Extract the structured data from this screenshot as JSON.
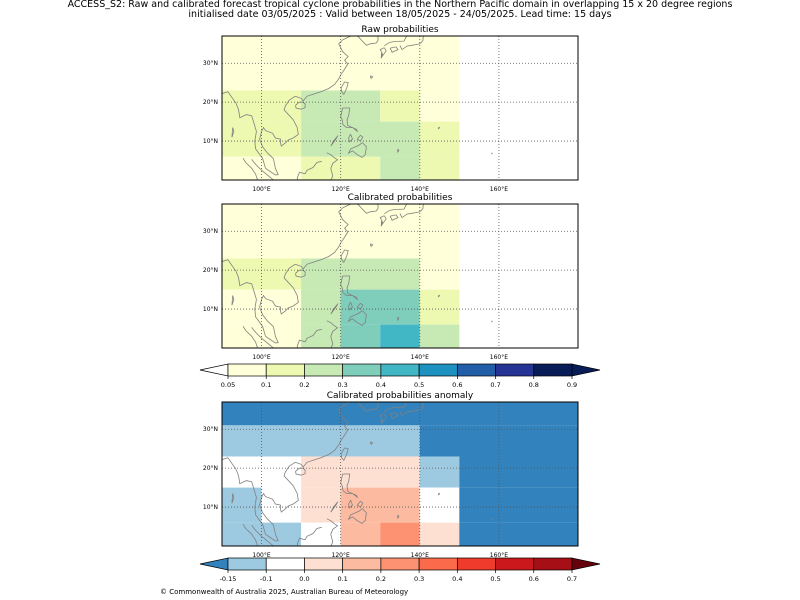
{
  "header": {
    "title_line1": "ACCESS_S2: Raw and calibrated forecast tropical cyclone probabilities in the Northern Pacific domain in overlapping 15 x 20 degree regions",
    "title_line2": "initialised date 03/05/2025 :  Valid between 18/05/2025 - 24/05/2025. Lead time: 15 days"
  },
  "footer": {
    "copyright": "© Commonwealth of Australia 2025, Australian Bureau of Meteorology"
  },
  "map": {
    "lon_range": [
      90,
      180
    ],
    "lat_range": [
      0,
      37
    ],
    "lon_ticks": [
      100,
      120,
      140,
      160
    ],
    "lon_tick_labels": [
      "100°E",
      "120°E",
      "140°E",
      "160°E"
    ],
    "lat_ticks": [
      10,
      20,
      30
    ],
    "lat_tick_labels": [
      "10°N",
      "20°N",
      "30°N"
    ],
    "grid": true,
    "coastline_color": "#808080"
  },
  "chart_data": [
    {
      "type": "heatmap",
      "title": "Raw probabilities",
      "colorbar": "probability",
      "cells": [
        {
          "lon": [
            90,
            150
          ],
          "lat": [
            23,
            37
          ],
          "value": 0.05
        },
        {
          "lon": [
            90,
            100
          ],
          "lat": [
            15,
            23
          ],
          "value": 0.15
        },
        {
          "lon": [
            100,
            110
          ],
          "lat": [
            15,
            23
          ],
          "value": 0.15
        },
        {
          "lon": [
            110,
            130
          ],
          "lat": [
            15,
            23
          ],
          "value": 0.25
        },
        {
          "lon": [
            130,
            140
          ],
          "lat": [
            15,
            23
          ],
          "value": 0.15
        },
        {
          "lon": [
            140,
            150
          ],
          "lat": [
            15,
            23
          ],
          "value": 0.05
        },
        {
          "lon": [
            90,
            110
          ],
          "lat": [
            6,
            15
          ],
          "value": 0.15
        },
        {
          "lon": [
            110,
            140
          ],
          "lat": [
            6,
            15
          ],
          "value": 0.25
        },
        {
          "lon": [
            140,
            150
          ],
          "lat": [
            6,
            15
          ],
          "value": 0.15
        },
        {
          "lon": [
            90,
            110
          ],
          "lat": [
            0,
            6
          ],
          "value": 0.05
        },
        {
          "lon": [
            110,
            130
          ],
          "lat": [
            0,
            6
          ],
          "value": 0.15
        },
        {
          "lon": [
            130,
            140
          ],
          "lat": [
            0,
            6
          ],
          "value": 0.25
        },
        {
          "lon": [
            140,
            150
          ],
          "lat": [
            0,
            6
          ],
          "value": 0.15
        }
      ]
    },
    {
      "type": "heatmap",
      "title": "Calibrated probabilities",
      "colorbar": "probability",
      "cells": [
        {
          "lon": [
            90,
            150
          ],
          "lat": [
            23,
            37
          ],
          "value": 0.05
        },
        {
          "lon": [
            90,
            110
          ],
          "lat": [
            15,
            23
          ],
          "value": 0.15
        },
        {
          "lon": [
            110,
            140
          ],
          "lat": [
            15,
            23
          ],
          "value": 0.25
        },
        {
          "lon": [
            140,
            150
          ],
          "lat": [
            15,
            23
          ],
          "value": 0.05
        },
        {
          "lon": [
            90,
            110
          ],
          "lat": [
            6,
            15
          ],
          "value": 0.05
        },
        {
          "lon": [
            110,
            120
          ],
          "lat": [
            6,
            15
          ],
          "value": 0.25
        },
        {
          "lon": [
            120,
            140
          ],
          "lat": [
            6,
            15
          ],
          "value": 0.35
        },
        {
          "lon": [
            140,
            150
          ],
          "lat": [
            6,
            15
          ],
          "value": 0.15
        },
        {
          "lon": [
            90,
            110
          ],
          "lat": [
            0,
            6
          ],
          "value": 0.05
        },
        {
          "lon": [
            110,
            120
          ],
          "lat": [
            0,
            6
          ],
          "value": 0.25
        },
        {
          "lon": [
            120,
            130
          ],
          "lat": [
            0,
            6
          ],
          "value": 0.35
        },
        {
          "lon": [
            130,
            140
          ],
          "lat": [
            0,
            6
          ],
          "value": 0.45
        },
        {
          "lon": [
            140,
            150
          ],
          "lat": [
            0,
            6
          ],
          "value": 0.25
        }
      ]
    },
    {
      "type": "heatmap",
      "title": "Calibrated probabilities anomaly",
      "colorbar": "anomaly",
      "cells": [
        {
          "lon": [
            90,
            180
          ],
          "lat": [
            31,
            37
          ],
          "value": -0.2
        },
        {
          "lon": [
            90,
            140
          ],
          "lat": [
            23,
            31
          ],
          "value": -0.12
        },
        {
          "lon": [
            140,
            180
          ],
          "lat": [
            23,
            31
          ],
          "value": -0.2
        },
        {
          "lon": [
            90,
            110
          ],
          "lat": [
            15,
            23
          ],
          "value": -0.05
        },
        {
          "lon": [
            110,
            140
          ],
          "lat": [
            15,
            23
          ],
          "value": 0.05
        },
        {
          "lon": [
            140,
            150
          ],
          "lat": [
            15,
            23
          ],
          "value": -0.12
        },
        {
          "lon": [
            150,
            180
          ],
          "lat": [
            15,
            23
          ],
          "value": -0.2
        },
        {
          "lon": [
            90,
            100
          ],
          "lat": [
            6,
            15
          ],
          "value": -0.12
        },
        {
          "lon": [
            100,
            110
          ],
          "lat": [
            6,
            15
          ],
          "value": -0.05
        },
        {
          "lon": [
            110,
            120
          ],
          "lat": [
            6,
            15
          ],
          "value": 0.05
        },
        {
          "lon": [
            120,
            140
          ],
          "lat": [
            6,
            15
          ],
          "value": 0.15
        },
        {
          "lon": [
            140,
            150
          ],
          "lat": [
            6,
            15
          ],
          "value": -0.05
        },
        {
          "lon": [
            150,
            180
          ],
          "lat": [
            6,
            15
          ],
          "value": -0.2
        },
        {
          "lon": [
            90,
            110
          ],
          "lat": [
            0,
            6
          ],
          "value": -0.12
        },
        {
          "lon": [
            110,
            120
          ],
          "lat": [
            0,
            6
          ],
          "value": -0.05
        },
        {
          "lon": [
            120,
            130
          ],
          "lat": [
            0,
            6
          ],
          "value": 0.15
        },
        {
          "lon": [
            130,
            140
          ],
          "lat": [
            0,
            6
          ],
          "value": 0.25
        },
        {
          "lon": [
            140,
            150
          ],
          "lat": [
            0,
            6
          ],
          "value": 0.05
        },
        {
          "lon": [
            150,
            180
          ],
          "lat": [
            0,
            6
          ],
          "value": -0.2
        }
      ]
    }
  ],
  "colorbars": {
    "probability": {
      "bounds": [
        0.05,
        0.1,
        0.2,
        0.3,
        0.4,
        0.5,
        0.6,
        0.7,
        0.8,
        0.9
      ],
      "tick_labels": [
        "0.05",
        "0.1",
        "0.2",
        "0.3",
        "0.4",
        "0.5",
        "0.6",
        "0.7",
        "0.8",
        "0.9"
      ],
      "colors": [
        "#ffffd9",
        "#edf8b1",
        "#c7e9b4",
        "#7fcdbb",
        "#41b6c4",
        "#1d91c0",
        "#225ea8",
        "#253494",
        "#081d58"
      ],
      "under_color": "#ffffff",
      "over_color": "#081d58"
    },
    "anomaly": {
      "bounds": [
        -0.15,
        -0.1,
        0.0,
        0.1,
        0.2,
        0.3,
        0.4,
        0.5,
        0.6,
        0.7
      ],
      "tick_labels": [
        "-0.15",
        "-0.1",
        "0.0",
        "0.1",
        "0.2",
        "0.3",
        "0.4",
        "0.5",
        "0.6",
        "0.7"
      ],
      "colors": [
        "#9ecae1",
        "#ffffff",
        "#fee0d2",
        "#fcbba1",
        "#fc9272",
        "#fb6a4a",
        "#ef3b2c",
        "#cb181d",
        "#a50f15"
      ],
      "under_color": "#3182bd",
      "over_color": "#67000d"
    }
  }
}
